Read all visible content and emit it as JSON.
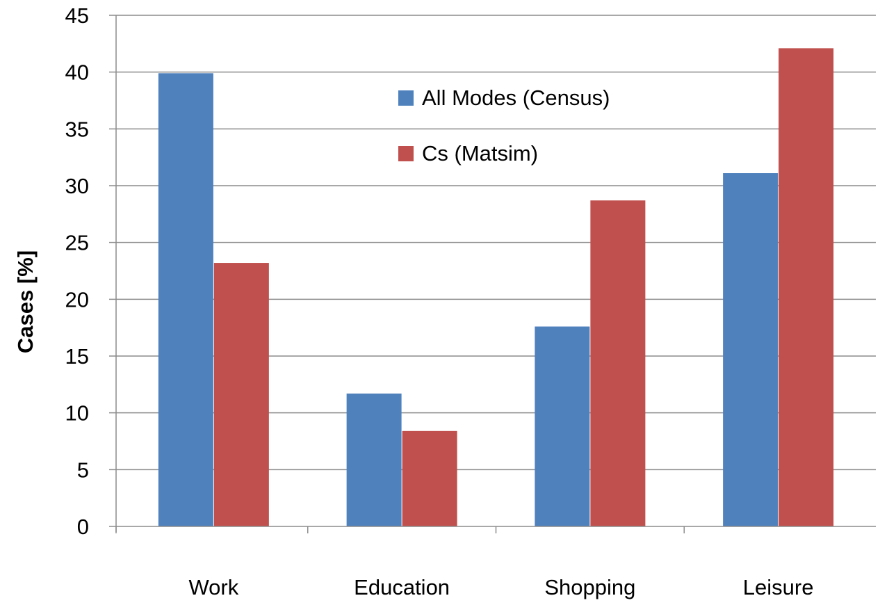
{
  "chart_data": {
    "type": "bar",
    "title": "",
    "xlabel": "",
    "ylabel": "Cases [%]",
    "categories": [
      "Work",
      "Education",
      "Shopping",
      "Leisure"
    ],
    "series": [
      {
        "name": "All Modes (Census)",
        "color": "#4f81bd",
        "values": [
          39.9,
          11.7,
          17.6,
          31.1
        ]
      },
      {
        "name": "Cs (Matsim)",
        "color": "#c0504d",
        "values": [
          23.2,
          8.4,
          28.7,
          42.1
        ]
      }
    ],
    "ylim": [
      0,
      45
    ],
    "yticks": [
      0,
      5,
      10,
      15,
      20,
      25,
      30,
      35,
      40,
      45
    ],
    "grid": true,
    "legend_position": "top-center"
  }
}
